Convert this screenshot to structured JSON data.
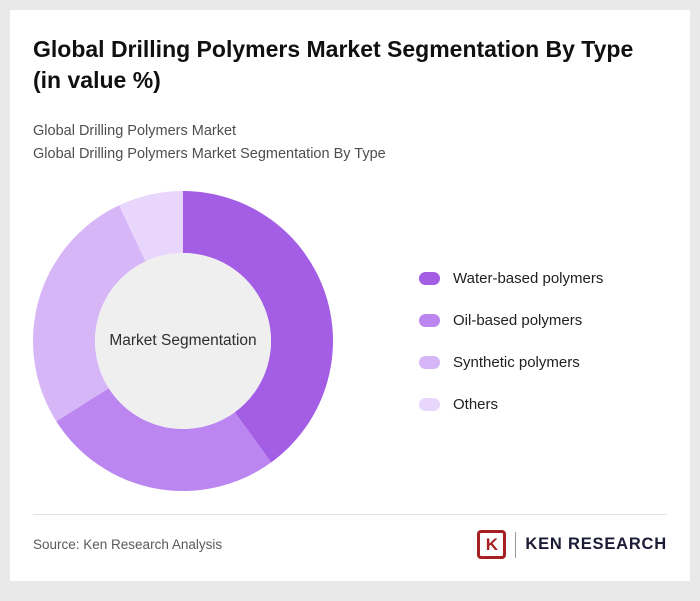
{
  "header": {
    "title": "Global Drilling Polymers Market Segmentation By Type (in value %)",
    "subtitle1": "Global Drilling Polymers Market",
    "subtitle2": "Global Drilling Polymers Market Segmentation By Type"
  },
  "chart_data": {
    "type": "pie",
    "variant": "donut",
    "title": "Global Drilling Polymers Market Segmentation By Type (in value %)",
    "center_label": "Market Segmentation",
    "labels": [
      "Water-based polymers",
      "Oil-based polymers",
      "Synthetic polymers",
      "Others"
    ],
    "values": [
      40,
      26,
      27,
      7
    ],
    "colors": [
      "#a45ee5",
      "#bb86f0",
      "#d7b6f8",
      "#e8d6fc"
    ],
    "center_fill": "#efefef",
    "legend_position": "right"
  },
  "footer": {
    "source": "Source: Ken Research Analysis",
    "logo": {
      "letter": "K",
      "text": "KEN RESEARCH"
    }
  }
}
